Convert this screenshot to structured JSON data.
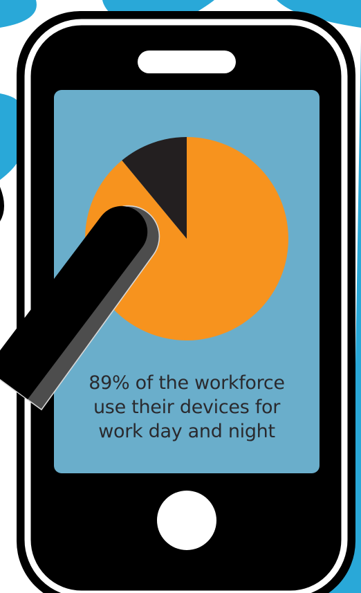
{
  "caption": {
    "line1": "89% of the workforce",
    "line2": "use their devices for",
    "line3": "work day and night"
  },
  "chart_data": {
    "type": "pie",
    "slices": [
      {
        "value": 89,
        "color": "#f7931e"
      },
      {
        "value": 11,
        "color": "#231f20"
      }
    ]
  },
  "colors": {
    "background": "#ffffff",
    "accent_blue": "#29a8d8",
    "screen": "#6aaecb",
    "phone_body": "#000000",
    "phone_outline": "#ffffff",
    "pie_orange": "#f7931e",
    "pie_dark": "#231f20",
    "finger_outline": "#4d4d4d"
  },
  "icons": {
    "speaker": "speaker-slot-icon",
    "home": "home-button-icon",
    "finger": "pointing-finger-icon"
  }
}
